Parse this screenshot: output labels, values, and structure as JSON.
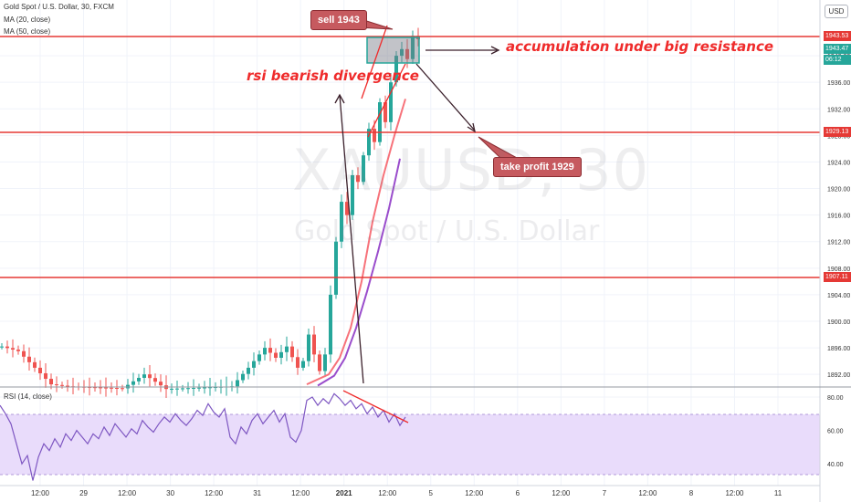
{
  "header": {
    "symbol_line": "Gold Spot / U.S. Dollar, 30, FXCM",
    "ma20_label": "MA (20, close)",
    "ma50_label": "MA (50, close)",
    "rsi_label": "RSI (14, close)",
    "currency_button": "USD"
  },
  "watermark": {
    "ticker": "XAUUSD, 30",
    "name": "Gold Spot / U.S. Dollar"
  },
  "annotations": {
    "divergence": "rsi bearish divergence",
    "accumulation": "accumulation under big resistance",
    "sell": "sell 1943",
    "take_profit": "take profit 1929"
  },
  "price_tags": {
    "resistance": "1943.53",
    "last": "1943.47",
    "countdown": "06:12",
    "target": "1929.13",
    "support": "1907.11"
  },
  "colors": {
    "candle_up": "#26a69a",
    "candle_down": "#ef5350",
    "ma20": "#f7727a",
    "ma50": "#9a4dcc",
    "rsi": "#7e57c2",
    "level_line": "#e53935",
    "rsi_band": "#e9dcfb"
  },
  "chart_data": [
    {
      "type": "line",
      "title": "Gold Spot / U.S. Dollar, 30, FXCM",
      "x_ticks": [
        "12:00",
        "29",
        "12:00",
        "30",
        "12:00",
        "31",
        "12:00",
        "2021",
        "12:00",
        "5",
        "12:00",
        "6",
        "12:00",
        "7",
        "12:00",
        "8",
        "12:00",
        "11"
      ],
      "y_ticks": [
        "1892.00",
        "1896.00",
        "1900.00",
        "1904.00",
        "1908.00",
        "1912.00",
        "1916.00",
        "1920.00",
        "1924.00",
        "1928.00",
        "1932.00",
        "1936.00",
        "1940.00"
      ],
      "ylim": [
        1890.1,
        1948.4
      ],
      "horizontal_levels": [
        1943.53,
        1929.13,
        1907.11
      ],
      "last_price": 1943.47,
      "series": [
        {
          "name": "MA (20, close)",
          "x": [
            56,
            60,
            62,
            64,
            66,
            68,
            70,
            72,
            74
          ],
          "y": [
            1890.5,
            1892.0,
            1894.5,
            1899.0,
            1906.0,
            1915.0,
            1922.0,
            1928.0,
            1933.5
          ]
        },
        {
          "name": "MA (50, close)",
          "x": [
            58,
            61,
            63,
            65,
            67,
            69,
            71,
            73
          ],
          "y": [
            1890.3,
            1891.8,
            1894.5,
            1899.0,
            1904.5,
            1910.5,
            1917.0,
            1924.5
          ]
        }
      ]
    },
    {
      "type": "line",
      "title": "RSI (14, close)",
      "y_ticks": [
        "40.00",
        "60.00",
        "80.00"
      ],
      "ylim": [
        27,
        86
      ],
      "band": [
        30,
        70
      ],
      "series": [
        {
          "name": "RSI (14, close)",
          "x": [
            0,
            1,
            2,
            3,
            4,
            5,
            6,
            7,
            8,
            9,
            10,
            11,
            12,
            13,
            14,
            15,
            16,
            17,
            18,
            19,
            20,
            21,
            22,
            23,
            24,
            25,
            26,
            27,
            28,
            29,
            30,
            31,
            32,
            33,
            34,
            35,
            36,
            37,
            38,
            39,
            40,
            41,
            42,
            43,
            44,
            45,
            46,
            47,
            48,
            49,
            50,
            51,
            52,
            53,
            54,
            55,
            56,
            57,
            58,
            59,
            60,
            61,
            62,
            63,
            64,
            65,
            66,
            67,
            68,
            69,
            70,
            71,
            72,
            73,
            74
          ],
          "y": [
            75,
            70,
            64,
            52,
            40,
            45,
            30,
            44,
            52,
            48,
            55,
            50,
            58,
            54,
            60,
            56,
            52,
            58,
            55,
            62,
            57,
            64,
            60,
            56,
            61,
            58,
            66,
            62,
            59,
            64,
            68,
            65,
            70,
            66,
            63,
            67,
            72,
            69,
            76,
            71,
            68,
            73,
            56,
            52,
            62,
            58,
            66,
            70,
            64,
            68,
            72,
            65,
            70,
            56,
            53,
            60,
            78,
            80,
            75,
            79,
            76,
            82,
            79,
            75,
            78,
            73,
            76,
            70,
            74,
            68,
            72,
            65,
            70,
            63,
            68
          ]
        }
      ]
    }
  ]
}
